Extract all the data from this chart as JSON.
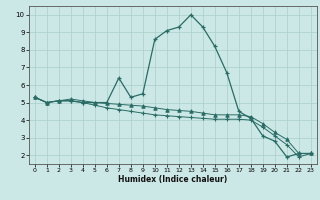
{
  "xlabel": "Humidex (Indice chaleur)",
  "bg_color": "#cce8e6",
  "line_color": "#2a6b65",
  "grid_color": "#aacfcc",
  "xlim": [
    -0.5,
    23.5
  ],
  "ylim": [
    1.5,
    10.5
  ],
  "yticks": [
    2,
    3,
    4,
    5,
    6,
    7,
    8,
    9,
    10
  ],
  "xticks": [
    0,
    1,
    2,
    3,
    4,
    5,
    6,
    7,
    8,
    9,
    10,
    11,
    12,
    13,
    14,
    15,
    16,
    17,
    18,
    19,
    20,
    21,
    22,
    23
  ],
  "line1_x": [
    0,
    1,
    2,
    3,
    4,
    5,
    6,
    7,
    8,
    9,
    10,
    11,
    12,
    13,
    14,
    15,
    16,
    17,
    18,
    19,
    20,
    21,
    22,
    23
  ],
  "line1_y": [
    5.3,
    5.0,
    5.1,
    5.1,
    5.0,
    5.0,
    5.0,
    6.4,
    5.3,
    5.5,
    8.6,
    9.1,
    9.3,
    10.0,
    9.3,
    8.2,
    6.7,
    4.5,
    4.1,
    3.1,
    2.8,
    1.9,
    2.1,
    2.1
  ],
  "line2_x": [
    0,
    1,
    2,
    3,
    4,
    5,
    6,
    7,
    8,
    9,
    10,
    11,
    12,
    13,
    14,
    15,
    16,
    17,
    18,
    19,
    20,
    21,
    22,
    23
  ],
  "line2_y": [
    5.3,
    5.0,
    5.1,
    5.1,
    5.0,
    4.85,
    4.7,
    4.6,
    4.5,
    4.4,
    4.3,
    4.25,
    4.2,
    4.15,
    4.1,
    4.05,
    4.05,
    4.05,
    4.0,
    3.6,
    3.1,
    2.6,
    1.9,
    2.1
  ],
  "line3_x": [
    0,
    1,
    2,
    3,
    4,
    5,
    6,
    7,
    8,
    9,
    10,
    11,
    12,
    13,
    14,
    15,
    16,
    17,
    18,
    19,
    20,
    21,
    22,
    23
  ],
  "line3_y": [
    5.3,
    5.0,
    5.1,
    5.2,
    5.1,
    5.0,
    4.95,
    4.9,
    4.85,
    4.8,
    4.7,
    4.6,
    4.55,
    4.5,
    4.4,
    4.3,
    4.3,
    4.3,
    4.2,
    3.8,
    3.3,
    2.9,
    2.1,
    2.1
  ]
}
